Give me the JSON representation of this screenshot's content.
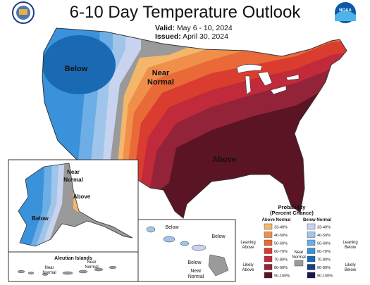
{
  "header": {
    "title": "6-10 Day Temperature Outlook",
    "valid_label": "Valid:",
    "valid_value": "May 6 - 10, 2024",
    "issued_label": "Issued:",
    "issued_value": "April 30, 2024"
  },
  "map_labels": {
    "conus_below": "Below",
    "conus_near_1": "Near",
    "conus_near_2": "Normal",
    "conus_above": "Above",
    "alaska_near_1": "Near",
    "alaska_near_2": "Normal",
    "alaska_above": "Above",
    "alaska_below": "Below",
    "aleutian_title": "Aleutian Islands",
    "aleutian_near_a_1": "Near",
    "aleutian_near_a_2": "Normal",
    "aleutian_near_b_1": "Near",
    "aleutian_near_b_2": "Normal",
    "hawaii_below_1": "Below",
    "hawaii_below_2": "Below",
    "hawaii_below_3": "Below",
    "hawaii_near_1": "Near",
    "hawaii_near_2": "Normal"
  },
  "legend": {
    "title_1": "Probability",
    "title_2": "(Percent Chance)",
    "above_header": "Above Normal",
    "below_header": "Below Normal",
    "leaning_above_1": "Leaning",
    "leaning_above_2": "Above",
    "likely_above_1": "Likely",
    "likely_above_2": "Above",
    "leaning_below_1": "Leaning",
    "leaning_below_2": "Below",
    "likely_below_1": "Likely",
    "likely_below_2": "Below",
    "near_1": "Near",
    "near_2": "Normal",
    "above_bins": [
      {
        "label": "33-40%",
        "color": "#f4b66a"
      },
      {
        "label": "40-50%",
        "color": "#f08f4a"
      },
      {
        "label": "50-60%",
        "color": "#e96a38"
      },
      {
        "label": "60-70%",
        "color": "#da3d2f"
      },
      {
        "label": "70-80%",
        "color": "#c02a3a"
      },
      {
        "label": "80-90%",
        "color": "#922338"
      },
      {
        "label": "90-100%",
        "color": "#5a1424"
      }
    ],
    "below_bins": [
      {
        "label": "33-40%",
        "color": "#c8d4ef"
      },
      {
        "label": "40-50%",
        "color": "#9fc6ea"
      },
      {
        "label": "50-60%",
        "color": "#6eaee6"
      },
      {
        "label": "60-70%",
        "color": "#3a92db"
      },
      {
        "label": "70-80%",
        "color": "#1a6ab3"
      },
      {
        "label": "80-90%",
        "color": "#173f86"
      },
      {
        "label": "90-100%",
        "color": "#181a4d"
      }
    ],
    "near_color": "#9a9a9a"
  },
  "logos": {
    "left_logo": "doc-seal",
    "right_logo": "noaa-logo",
    "right_logo_text": "NOAA"
  },
  "colors": {
    "near_normal": "#9a9a9a",
    "outline": "#333333"
  }
}
